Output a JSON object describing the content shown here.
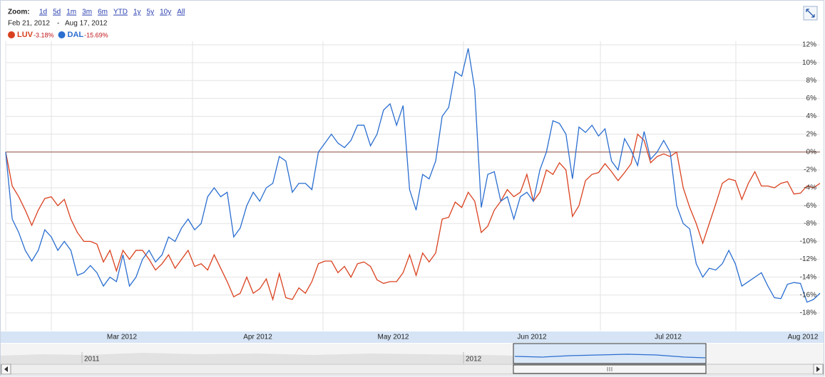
{
  "chart_data": {
    "type": "line",
    "zoom_label": "Zoom:",
    "zoom_options": [
      "1d",
      "5d",
      "1m",
      "3m",
      "6m",
      "YTD",
      "1y",
      "5y",
      "10y",
      "All"
    ],
    "date_range": {
      "start": "Feb 21, 2012",
      "separator": "-",
      "end": "Aug 17, 2012"
    },
    "month_labels": [
      "Mar 2012",
      "Apr 2012",
      "May 2012",
      "Jun 2012",
      "Jul 2012",
      "Aug 2012"
    ],
    "navigator_labels": [
      "2011",
      "2012"
    ],
    "ylim": [
      -20,
      12.4
    ],
    "yticks": [
      {
        "value": -18,
        "label": "-18%"
      },
      {
        "value": -16,
        "label": "-16%"
      },
      {
        "value": -14,
        "label": "-14%"
      },
      {
        "value": -12,
        "label": "-12%"
      },
      {
        "value": -10,
        "label": "-10%"
      },
      {
        "value": -8,
        "label": "-8%"
      },
      {
        "value": -6,
        "label": "-6%"
      },
      {
        "value": -4,
        "label": "-4%"
      },
      {
        "value": -2,
        "label": "-2%"
      },
      {
        "value": 0,
        "label": "0%"
      },
      {
        "value": 2,
        "label": "2%"
      },
      {
        "value": 4,
        "label": "4%"
      },
      {
        "value": 6,
        "label": "6%"
      },
      {
        "value": 8,
        "label": "8%"
      },
      {
        "value": 10,
        "label": "10%"
      },
      {
        "value": 12,
        "label": "12%"
      }
    ],
    "grid": true,
    "series": [
      {
        "name": "LUV",
        "color": "#d9411e",
        "change": {
          "value": -3.18,
          "label": "-3.18%"
        },
        "values": [
          0,
          -3.8,
          -5,
          -6.5,
          -8.2,
          -6.5,
          -5.2,
          -5,
          -6,
          -5.3,
          -7.5,
          -9,
          -10,
          -10,
          -10.3,
          -12.3,
          -11,
          -13.3,
          -11,
          -12,
          -11,
          -11,
          -12,
          -13.2,
          -12.5,
          -11.5,
          -13,
          -12,
          -11,
          -12.8,
          -12.5,
          -13.2,
          -11.5,
          -13,
          -14.5,
          -16.2,
          -15.8,
          -14,
          -15.8,
          -15.3,
          -14.2,
          -16.5,
          -13.6,
          -16.3,
          -16.5,
          -15.2,
          -15.8,
          -14.5,
          -12.5,
          -12.2,
          -12.2,
          -13.5,
          -12.8,
          -14,
          -12.5,
          -12.3,
          -12.8,
          -14.3,
          -14.7,
          -14.5,
          -14.5,
          -13.5,
          -11.5,
          -13.8,
          -11.3,
          -12.3,
          -11.3,
          -7.5,
          -7.3,
          -5.6,
          -6.2,
          -4.5,
          -5.5,
          -9,
          -8.3,
          -6.5,
          -5.5,
          -4.2,
          -5,
          -4.5,
          -2.5,
          -5.5,
          -4.5,
          -2,
          -2.5,
          -1.2,
          -2,
          -7.2,
          -6,
          -3.2,
          -2.5,
          -2.3,
          -1.3,
          -2.2,
          -3.2,
          -2.3,
          -1.3,
          2,
          1.3,
          -1.2,
          -0.5,
          -0.2,
          -0.5,
          0,
          -4,
          -6.2,
          -8,
          -10.2,
          -8,
          -5.8,
          -3.5,
          -3,
          -3.2,
          -5.3,
          -3.5,
          -2.2,
          -3.8,
          -3.8,
          -4,
          -3.5,
          -3.3,
          -4.7,
          -4.6,
          -3.8,
          -4,
          -3.5
        ]
      },
      {
        "name": "DAL",
        "color": "#2a6ed0",
        "change": {
          "value": -15.69,
          "label": "-15.69%"
        },
        "values": [
          0,
          -7.5,
          -9,
          -11,
          -12.2,
          -11,
          -8.7,
          -9.5,
          -11,
          -10,
          -11,
          -13.8,
          -13.5,
          -12.7,
          -13.5,
          -15,
          -14,
          -14.5,
          -11.5,
          -15,
          -14,
          -12,
          -11,
          -12.3,
          -11.5,
          -9.5,
          -10,
          -8.5,
          -7.5,
          -8.7,
          -8,
          -5,
          -4,
          -5,
          -4.5,
          -9.5,
          -8.5,
          -6,
          -4.5,
          -5.5,
          -4,
          -3.5,
          -0.5,
          -1,
          -4.5,
          -3.5,
          -3.5,
          -4.2,
          0,
          1,
          2,
          1,
          0.5,
          1.3,
          3,
          3,
          0.7,
          2,
          4.7,
          5.4,
          3,
          5.2,
          -4.2,
          -6.5,
          -2.5,
          -3,
          -1,
          4,
          5,
          9,
          8.5,
          11.6,
          7,
          -6.2,
          -2.5,
          -2.2,
          -5.5,
          -5,
          -7.5,
          -5,
          -4.5,
          -5.5,
          -2,
          0,
          3.5,
          3.2,
          2,
          -3,
          2.8,
          2.2,
          3,
          1.8,
          2.6,
          -1,
          -2,
          1.5,
          0.2,
          -1.5,
          2.3,
          -0.8,
          0,
          1.3,
          0,
          -6,
          -8,
          -8.6,
          -12.5,
          -14,
          -13,
          -13.2,
          -12.5,
          -11,
          -12.5,
          -15,
          -14.5,
          -14,
          -13.5,
          -15,
          -16.3,
          -16.4,
          -14.8,
          -14.6,
          -14.7,
          -16.8,
          -16.5,
          -15.8
        ]
      }
    ]
  }
}
